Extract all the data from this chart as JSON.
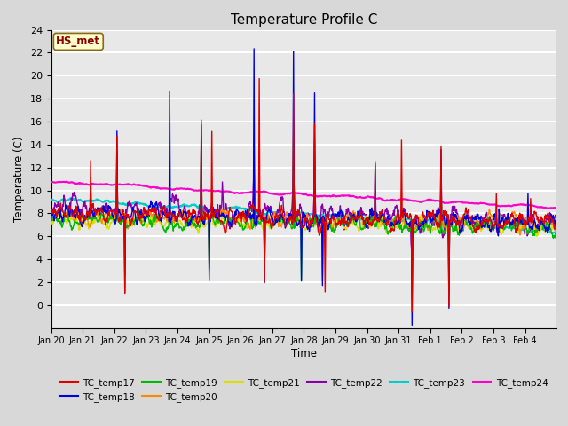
{
  "title": "Temperature Profile C",
  "xlabel": "Time",
  "ylabel": "Temperature (C)",
  "ylim": [
    -2,
    24
  ],
  "yticks": [
    0,
    2,
    4,
    6,
    8,
    10,
    12,
    14,
    16,
    18,
    20,
    22,
    24
  ],
  "xtick_labels": [
    "Jan 20",
    "Jan 21",
    "Jan 22",
    "Jan 23",
    "Jan 24",
    "Jan 25",
    "Jan 26",
    "Jan 27",
    "Jan 28",
    "Jan 29",
    "Jan 30",
    "Jan 31",
    "Feb 1",
    "Feb 2",
    "Feb 3",
    "Feb 4"
  ],
  "annotation_label": "HS_met",
  "series_colors": {
    "TC_temp17": "#dd0000",
    "TC_temp18": "#0000dd",
    "TC_temp19": "#00bb00",
    "TC_temp20": "#ff8800",
    "TC_temp21": "#dddd00",
    "TC_temp22": "#8800aa",
    "TC_temp23": "#00cccc",
    "TC_temp24": "#ff00cc"
  },
  "bg_color": "#e8e8e8",
  "grid_color": "#ffffff",
  "linewidth": 1.0,
  "figsize": [
    6.4,
    4.8
  ],
  "dpi": 100
}
